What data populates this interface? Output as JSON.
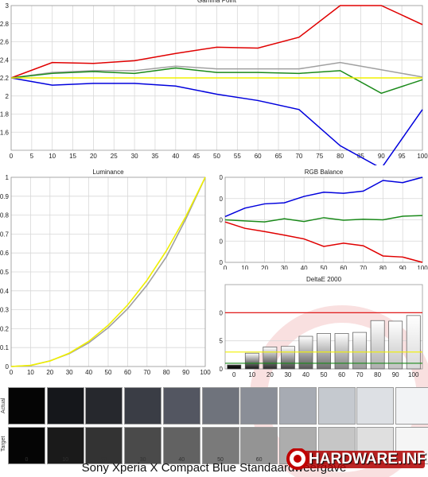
{
  "caption": "Sony Xperia X Compact Blue Standaardweergave",
  "logo": {
    "text": "HARDWARE.INFO"
  },
  "colors": {
    "red": "#e00000",
    "green": "#1a8a1a",
    "blue": "#0000dd",
    "gray": "#a0a0a0",
    "yellow": "#f0f000"
  },
  "chart_data": [
    {
      "id": "gamma",
      "type": "line",
      "title": "Gamma Point",
      "x": [
        0,
        10,
        20,
        30,
        40,
        50,
        60,
        70,
        80,
        90,
        100
      ],
      "x_ticks": [
        0,
        5,
        10,
        15,
        20,
        25,
        30,
        35,
        40,
        45,
        50,
        55,
        60,
        65,
        70,
        75,
        80,
        85,
        90,
        95,
        100
      ],
      "y_ticks": [
        1.6,
        1.8,
        2,
        2.2,
        2.4,
        2.6,
        2.8,
        3
      ],
      "ylim": [
        1.4,
        3
      ],
      "grid": true,
      "series": [
        {
          "color": "red",
          "values": [
            2.2,
            2.37,
            2.36,
            2.39,
            2.47,
            2.54,
            2.53,
            2.65,
            3.0,
            3.0,
            2.79
          ]
        },
        {
          "color": "gray",
          "values": [
            2.2,
            2.26,
            2.28,
            2.28,
            2.33,
            2.3,
            2.3,
            2.3,
            2.37,
            2.29,
            2.21
          ]
        },
        {
          "color": "green",
          "values": [
            2.2,
            2.25,
            2.27,
            2.25,
            2.31,
            2.26,
            2.26,
            2.25,
            2.28,
            2.03,
            2.18
          ]
        },
        {
          "color": "blue",
          "values": [
            2.2,
            2.12,
            2.14,
            2.14,
            2.11,
            2.02,
            1.95,
            1.85,
            1.45,
            1.2,
            1.85
          ]
        },
        {
          "color": "yellow",
          "values": [
            2.2,
            2.2,
            2.2,
            2.2,
            2.2,
            2.2,
            2.2,
            2.2,
            2.2,
            2.2,
            2.2
          ]
        }
      ]
    },
    {
      "id": "luminance",
      "type": "line",
      "title": "Luminance",
      "x": [
        0,
        10,
        20,
        30,
        40,
        50,
        60,
        70,
        80,
        90,
        100
      ],
      "x_ticks": [
        0,
        10,
        20,
        30,
        40,
        50,
        60,
        70,
        80,
        90,
        100
      ],
      "y_ticks": [
        0,
        0.1,
        0.2,
        0.3,
        0.4,
        0.5,
        0.6,
        0.7,
        0.8,
        0.9,
        1
      ],
      "ylim": [
        0,
        1
      ],
      "grid": true,
      "series": [
        {
          "color": "gray",
          "values": [
            0,
            0.005,
            0.03,
            0.068,
            0.125,
            0.205,
            0.305,
            0.43,
            0.58,
            0.78,
            1
          ]
        },
        {
          "color": "yellow",
          "values": [
            0,
            0.006,
            0.029,
            0.071,
            0.133,
            0.218,
            0.325,
            0.456,
            0.612,
            0.793,
            1
          ]
        }
      ]
    },
    {
      "id": "rgb",
      "type": "line",
      "title": "RGB Balance",
      "x": [
        0,
        10,
        20,
        30,
        40,
        50,
        60,
        70,
        80,
        90,
        100
      ],
      "x_ticks": [
        0,
        10,
        20,
        30,
        40,
        50,
        60,
        70,
        80,
        90,
        100
      ],
      "y_ticks": [
        80,
        90,
        100,
        110,
        120
      ],
      "ylim": [
        80,
        120
      ],
      "grid": true,
      "series": [
        {
          "color": "blue",
          "values": [
            101.5,
            105.5,
            107.5,
            108,
            111,
            113,
            112.5,
            113.5,
            118.5,
            117.5,
            120
          ]
        },
        {
          "color": "green",
          "values": [
            100,
            99.5,
            99,
            100.5,
            99.2,
            101,
            99.8,
            100.3,
            100,
            101.7,
            102
          ]
        },
        {
          "color": "red",
          "values": [
            99,
            96,
            94.5,
            92.8,
            91,
            87.5,
            89,
            87.8,
            83,
            82.5,
            80
          ]
        }
      ]
    },
    {
      "id": "deltae",
      "type": "bar",
      "title": "DeltaE 2000",
      "categories": [
        "0",
        "10",
        "20",
        "30",
        "40",
        "50",
        "60",
        "70",
        "80",
        "90",
        "100"
      ],
      "values": [
        0.7,
        2.8,
        3.9,
        4.0,
        5.8,
        6.3,
        6.3,
        6.5,
        8.6,
        8.5,
        9.5
      ],
      "y_ticks": [
        0,
        5,
        10
      ],
      "ylim": [
        0,
        15
      ],
      "reference_lines": [
        {
          "value": 10,
          "color": "red"
        },
        {
          "value": 3,
          "color": "yellow"
        },
        {
          "value": 1,
          "color": "green"
        }
      ],
      "grid": true
    }
  ],
  "swatches": {
    "actual_label": "Actual",
    "target_label": "Target",
    "labels": [
      "0",
      "10",
      "20",
      "30",
      "40",
      "50",
      "60",
      "70",
      "80",
      "90",
      "100"
    ],
    "actual": [
      "#050505",
      "#15171b",
      "#26282d",
      "#3a3d45",
      "#535661",
      "#6f737c",
      "#8a8e97",
      "#a7abb3",
      "#c5c9cf",
      "#dde0e4",
      "#f2f3f5"
    ],
    "target": [
      "#050505",
      "#1a1a1a",
      "#333333",
      "#4a4a4a",
      "#626262",
      "#7a7a7a",
      "#949494",
      "#adadad",
      "#c6c6c6",
      "#dfdfdf",
      "#f5f5f5"
    ]
  }
}
